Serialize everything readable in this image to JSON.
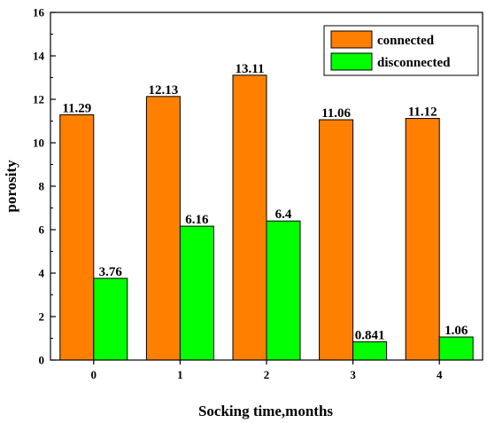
{
  "chart_data": {
    "type": "bar",
    "title": "",
    "xlabel": "Socking time,months",
    "ylabel": "porosity",
    "categories": [
      "0",
      "1",
      "2",
      "3",
      "4"
    ],
    "ylim": [
      0,
      16
    ],
    "yticks": [
      "0",
      "2",
      "4",
      "6",
      "8",
      "10",
      "12",
      "14",
      "16"
    ],
    "grid": false,
    "legend_position": "top-right",
    "series": [
      {
        "name": "connected",
        "values": [
          11.29,
          12.13,
          13.11,
          11.06,
          11.12
        ],
        "labels": [
          "11.29",
          "12.13",
          "13.11",
          "11.06",
          "11.12"
        ],
        "color": "#FF8000"
      },
      {
        "name": "disconnected",
        "values": [
          3.76,
          6.16,
          6.4,
          0.841,
          1.06
        ],
        "labels": [
          "3.76",
          "6.16",
          "6.4",
          "0.841",
          "1.06"
        ],
        "color": "#00FF00"
      }
    ]
  }
}
